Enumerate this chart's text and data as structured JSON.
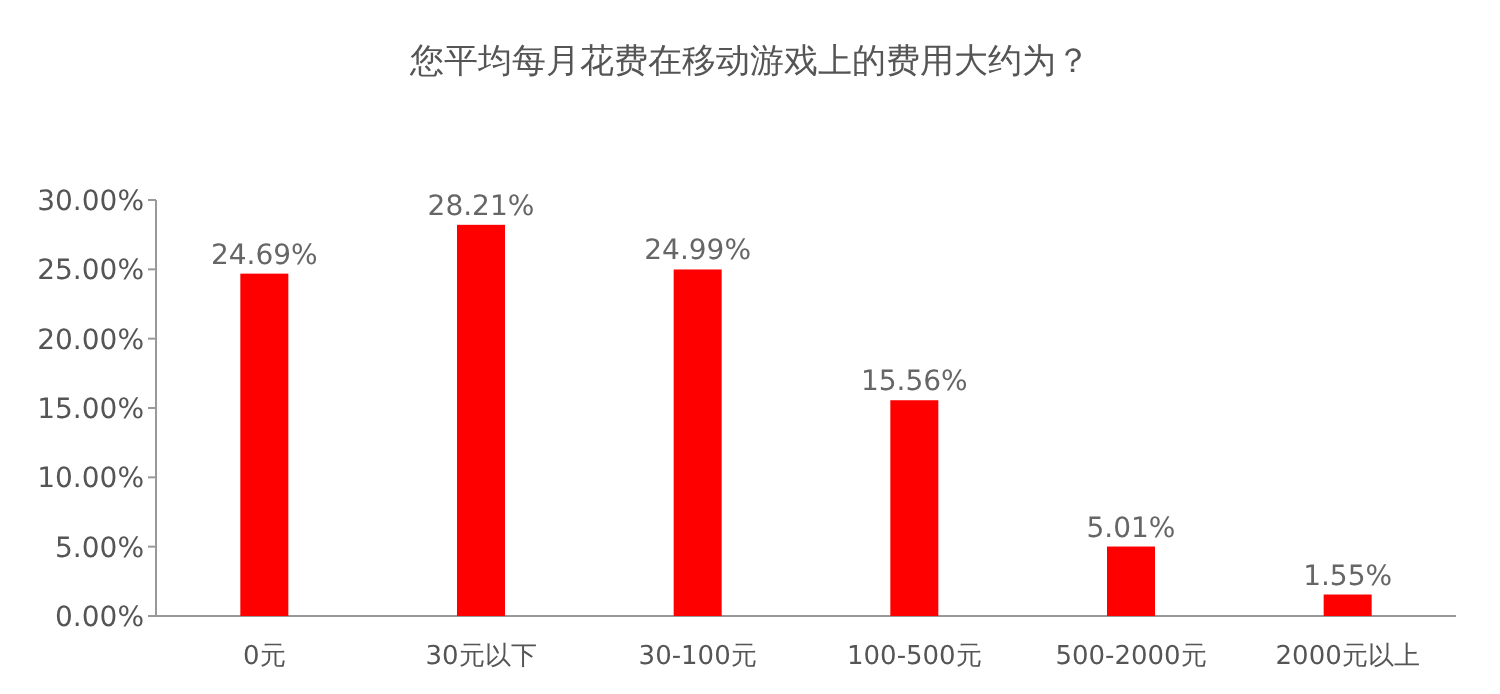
{
  "chart_data": {
    "type": "bar",
    "title": "您平均每月花费在移动游戏上的费用大约为？",
    "categories": [
      "0元",
      "30元以下",
      "30-100元",
      "100-500元",
      "500-2000元",
      "2000元以上"
    ],
    "values": [
      24.69,
      28.21,
      24.99,
      15.56,
      5.01,
      1.55
    ],
    "value_labels": [
      "24.69%",
      "28.21%",
      "24.99%",
      "15.56%",
      "5.01%",
      "1.55%"
    ],
    "color": "#ff0000",
    "ylim": [
      0,
      30
    ],
    "yticks": [
      {
        "value": 0,
        "label": "0.00%"
      },
      {
        "value": 5,
        "label": "5.00%"
      },
      {
        "value": 10,
        "label": "10.00%"
      },
      {
        "value": 15,
        "label": "15.00%"
      },
      {
        "value": 20,
        "label": "20.00%"
      },
      {
        "value": 25,
        "label": "25.00%"
      },
      {
        "value": 30,
        "label": "30.00%"
      }
    ],
    "grid": false
  }
}
